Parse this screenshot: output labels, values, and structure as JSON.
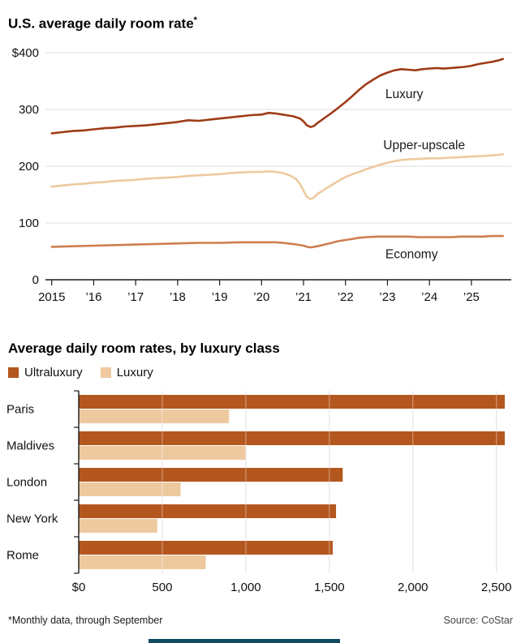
{
  "colors": {
    "ultraluxury_dark": "#9e3b17",
    "ultraluxury_bar": "#b4571e",
    "economy_line": "#cd7e4e",
    "light_tan": "#eec9a0",
    "gridline": "#dcdcdc",
    "axis": "#1a1a1a",
    "divider": "#134b5f"
  },
  "line_section": {
    "title": "U.S. average daily room rate",
    "superscript": "*"
  },
  "bar_section": {
    "title": "Average daily room rates, by luxury class"
  },
  "footer": {
    "footnote": "*Monthly data, through September",
    "source": "Source: CoStar"
  },
  "chart_data": [
    {
      "type": "line",
      "title": "U.S. average daily room rate*",
      "xlabel": "",
      "ylabel": "",
      "ylim": [
        0,
        400
      ],
      "xlim": [
        2014.85,
        2025.95
      ],
      "grid": "horizontal",
      "legend_position": "inline-annotations",
      "yticks": [
        {
          "value": 0,
          "label": "0"
        },
        {
          "value": 100,
          "label": "100"
        },
        {
          "value": 200,
          "label": "200"
        },
        {
          "value": 300,
          "label": "300"
        },
        {
          "value": 400,
          "label": "$400"
        }
      ],
      "xticks": [
        {
          "value": 2015,
          "label": "2015"
        },
        {
          "value": 2016,
          "label": "’16"
        },
        {
          "value": 2017,
          "label": "’17"
        },
        {
          "value": 2018,
          "label": "’18"
        },
        {
          "value": 2019,
          "label": "’19"
        },
        {
          "value": 2020,
          "label": "’20"
        },
        {
          "value": 2021,
          "label": "’21"
        },
        {
          "value": 2022,
          "label": "’22"
        },
        {
          "value": 2023,
          "label": "’23"
        },
        {
          "value": 2024,
          "label": "’24"
        },
        {
          "value": 2025,
          "label": "’25"
        }
      ],
      "series": [
        {
          "name": "Luxury",
          "color": "#9e3b17",
          "label_pos": {
            "x": 2022.95,
            "y": 320
          },
          "points": [
            [
              2015.0,
              258
            ],
            [
              2015.25,
              260
            ],
            [
              2015.5,
              262
            ],
            [
              2015.75,
              263
            ],
            [
              2016.0,
              265
            ],
            [
              2016.25,
              267
            ],
            [
              2016.5,
              268
            ],
            [
              2016.75,
              270
            ],
            [
              2017.0,
              271
            ],
            [
              2017.25,
              272
            ],
            [
              2017.5,
              274
            ],
            [
              2017.75,
              276
            ],
            [
              2018.0,
              278
            ],
            [
              2018.25,
              281
            ],
            [
              2018.5,
              280
            ],
            [
              2018.75,
              282
            ],
            [
              2019.0,
              284
            ],
            [
              2019.25,
              286
            ],
            [
              2019.5,
              288
            ],
            [
              2019.75,
              290
            ],
            [
              2020.0,
              291
            ],
            [
              2020.17,
              294
            ],
            [
              2020.33,
              293
            ],
            [
              2020.5,
              291
            ],
            [
              2020.75,
              288
            ],
            [
              2020.92,
              284
            ],
            [
              2021.0,
              279
            ],
            [
              2021.08,
              272
            ],
            [
              2021.17,
              269
            ],
            [
              2021.25,
              271
            ],
            [
              2021.33,
              276
            ],
            [
              2021.5,
              285
            ],
            [
              2021.67,
              294
            ],
            [
              2021.83,
              303
            ],
            [
              2022.0,
              313
            ],
            [
              2022.17,
              324
            ],
            [
              2022.33,
              335
            ],
            [
              2022.5,
              345
            ],
            [
              2022.67,
              353
            ],
            [
              2022.83,
              360
            ],
            [
              2023.0,
              365
            ],
            [
              2023.17,
              369
            ],
            [
              2023.33,
              371
            ],
            [
              2023.5,
              370
            ],
            [
              2023.67,
              369
            ],
            [
              2023.83,
              371
            ],
            [
              2024.0,
              372
            ],
            [
              2024.17,
              373
            ],
            [
              2024.33,
              372
            ],
            [
              2024.5,
              373
            ],
            [
              2024.67,
              374
            ],
            [
              2024.83,
              375
            ],
            [
              2025.0,
              377
            ],
            [
              2025.17,
              380
            ],
            [
              2025.33,
              382
            ],
            [
              2025.5,
              384
            ],
            [
              2025.67,
              387
            ],
            [
              2025.75,
              389
            ]
          ]
        },
        {
          "name": "Upper-upscale",
          "color": "#eec9a0",
          "label_pos": {
            "x": 2022.9,
            "y": 230
          },
          "points": [
            [
              2015.0,
              164
            ],
            [
              2015.25,
              166
            ],
            [
              2015.5,
              168
            ],
            [
              2015.75,
              169
            ],
            [
              2016.0,
              171
            ],
            [
              2016.25,
              172
            ],
            [
              2016.5,
              174
            ],
            [
              2016.75,
              175
            ],
            [
              2017.0,
              176
            ],
            [
              2017.25,
              178
            ],
            [
              2017.5,
              179
            ],
            [
              2017.75,
              180
            ],
            [
              2018.0,
              181
            ],
            [
              2018.25,
              183
            ],
            [
              2018.5,
              184
            ],
            [
              2018.75,
              185
            ],
            [
              2019.0,
              186
            ],
            [
              2019.25,
              188
            ],
            [
              2019.5,
              189
            ],
            [
              2019.75,
              190
            ],
            [
              2020.0,
              190
            ],
            [
              2020.17,
              191
            ],
            [
              2020.33,
              190
            ],
            [
              2020.5,
              188
            ],
            [
              2020.67,
              184
            ],
            [
              2020.83,
              177
            ],
            [
              2020.92,
              168
            ],
            [
              2021.0,
              157
            ],
            [
              2021.08,
              146
            ],
            [
              2021.17,
              142
            ],
            [
              2021.25,
              145
            ],
            [
              2021.33,
              151
            ],
            [
              2021.5,
              159
            ],
            [
              2021.67,
              167
            ],
            [
              2021.83,
              174
            ],
            [
              2022.0,
              181
            ],
            [
              2022.17,
              186
            ],
            [
              2022.33,
              190
            ],
            [
              2022.5,
              195
            ],
            [
              2022.67,
              199
            ],
            [
              2022.83,
              203
            ],
            [
              2023.0,
              206
            ],
            [
              2023.17,
              209
            ],
            [
              2023.33,
              211
            ],
            [
              2023.5,
              212
            ],
            [
              2023.75,
              213
            ],
            [
              2024.0,
              214
            ],
            [
              2024.25,
              214
            ],
            [
              2024.5,
              215
            ],
            [
              2024.75,
              216
            ],
            [
              2025.0,
              217
            ],
            [
              2025.25,
              218
            ],
            [
              2025.5,
              219
            ],
            [
              2025.75,
              221
            ]
          ]
        },
        {
          "name": "Economy",
          "color": "#cd7e4e",
          "label_pos": {
            "x": 2022.95,
            "y": 38
          },
          "points": [
            [
              2015.0,
              58
            ],
            [
              2015.5,
              59
            ],
            [
              2016.0,
              60
            ],
            [
              2016.5,
              61
            ],
            [
              2017.0,
              62
            ],
            [
              2017.5,
              63
            ],
            [
              2018.0,
              64
            ],
            [
              2018.5,
              65
            ],
            [
              2019.0,
              65
            ],
            [
              2019.5,
              66
            ],
            [
              2020.0,
              66
            ],
            [
              2020.33,
              66
            ],
            [
              2020.5,
              65
            ],
            [
              2020.75,
              63
            ],
            [
              2021.0,
              60
            ],
            [
              2021.08,
              58
            ],
            [
              2021.17,
              57
            ],
            [
              2021.33,
              59
            ],
            [
              2021.5,
              62
            ],
            [
              2021.67,
              65
            ],
            [
              2021.83,
              68
            ],
            [
              2022.0,
              70
            ],
            [
              2022.17,
              72
            ],
            [
              2022.33,
              74
            ],
            [
              2022.5,
              75
            ],
            [
              2022.75,
              76
            ],
            [
              2023.0,
              76
            ],
            [
              2023.25,
              76
            ],
            [
              2023.5,
              76
            ],
            [
              2023.75,
              75
            ],
            [
              2024.0,
              75
            ],
            [
              2024.25,
              75
            ],
            [
              2024.5,
              75
            ],
            [
              2024.75,
              76
            ],
            [
              2025.0,
              76
            ],
            [
              2025.25,
              76
            ],
            [
              2025.5,
              77
            ],
            [
              2025.75,
              77
            ]
          ]
        }
      ]
    },
    {
      "type": "bar",
      "orientation": "horizontal",
      "title": "Average daily room rates, by luxury class",
      "xlabel": "",
      "ylabel": "",
      "xlim": [
        0,
        2550
      ],
      "legend_position": "top-left",
      "grid": "vertical",
      "categories": [
        "Paris",
        "Maldives",
        "London",
        "New York",
        "Rome"
      ],
      "series": [
        {
          "name": "Ultraluxury",
          "color": "#b4571e",
          "values": [
            2600,
            2600,
            1580,
            1540,
            1520
          ]
        },
        {
          "name": "Luxury",
          "color": "#eec9a0",
          "values": [
            900,
            1000,
            610,
            470,
            760
          ]
        }
      ],
      "xticks": [
        {
          "value": 0,
          "label": "$0"
        },
        {
          "value": 500,
          "label": "500"
        },
        {
          "value": 1000,
          "label": "1,000"
        },
        {
          "value": 1500,
          "label": "1,500"
        },
        {
          "value": 2000,
          "label": "2,000"
        },
        {
          "value": 2500,
          "label": "2,500"
        }
      ],
      "layout_note": "Paris and Maldives Ultraluxury bars are clipped at the right plot edge"
    }
  ]
}
